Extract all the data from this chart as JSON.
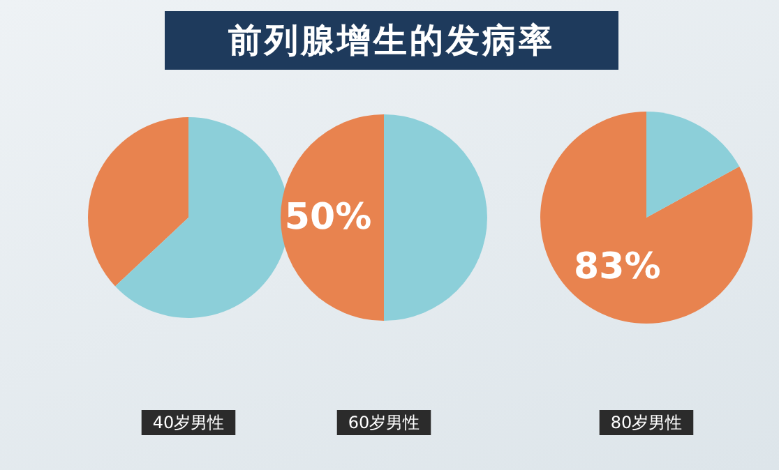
{
  "chart_data": [
    {
      "type": "pie",
      "title": "前列腺增生的发病率",
      "xlabel": "40岁男性",
      "categories": [
        null,
        null
      ],
      "values": [
        37,
        63
      ],
      "colors": [
        "#e8834f",
        "#8ccfd9"
      ]
    },
    {
      "type": "pie",
      "xlabel": "60岁男性",
      "categories": [
        null,
        null
      ],
      "values": [
        50,
        50
      ],
      "colors": [
        "#e8834f",
        "#8ccfd9"
      ],
      "value_labels": [
        "50%",
        null
      ]
    },
    {
      "type": "pie",
      "xlabel": "80岁男性",
      "categories": [
        null,
        null
      ],
      "values": [
        83,
        17
      ],
      "colors": [
        "#e8834f",
        "#8ccfd9"
      ],
      "value_labels": [
        "83%",
        null
      ]
    }
  ]
}
